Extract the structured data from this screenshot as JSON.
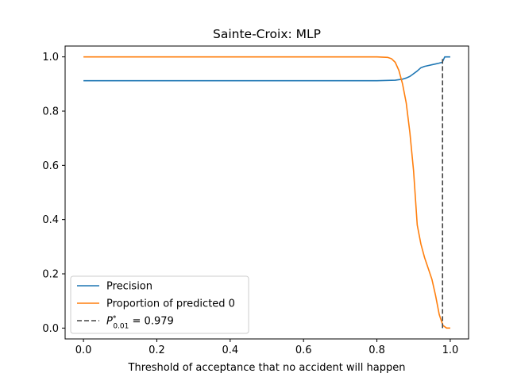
{
  "chart_data": {
    "type": "line",
    "title": "Sainte-Croix: MLP",
    "xlabel": "Threshold of acceptance that no accident will happen",
    "ylabel": "",
    "xlim": [
      -0.05,
      1.05
    ],
    "ylim": [
      -0.04,
      1.04
    ],
    "xticks": [
      0.0,
      0.2,
      0.4,
      0.6,
      0.8,
      1.0
    ],
    "xtick_labels": [
      "0.0",
      "0.2",
      "0.4",
      "0.6",
      "0.8",
      "1.0"
    ],
    "yticks": [
      0.0,
      0.2,
      0.4,
      0.6,
      0.8,
      1.0
    ],
    "ytick_labels": [
      "0.0",
      "0.2",
      "0.4",
      "0.6",
      "0.8",
      "1.0"
    ],
    "grid": false,
    "legend_position": "lower-left",
    "series": [
      {
        "name": "Precision",
        "color": "#1f77b4",
        "style": "solid",
        "x": [
          0.0,
          0.1,
          0.2,
          0.3,
          0.4,
          0.5,
          0.6,
          0.7,
          0.8,
          0.85,
          0.87,
          0.88,
          0.89,
          0.9,
          0.91,
          0.92,
          0.93,
          0.94,
          0.95,
          0.96,
          0.97,
          0.975,
          0.978,
          0.98,
          0.985,
          0.99,
          1.0
        ],
        "y": [
          0.912,
          0.912,
          0.912,
          0.912,
          0.912,
          0.912,
          0.912,
          0.912,
          0.912,
          0.914,
          0.918,
          0.922,
          0.928,
          0.938,
          0.948,
          0.96,
          0.965,
          0.968,
          0.971,
          0.974,
          0.977,
          0.979,
          0.98,
          0.985,
          1.0,
          1.0,
          1.0
        ]
      },
      {
        "name": "Proportion of predicted 0",
        "color": "#ff7f0e",
        "style": "solid",
        "x": [
          0.0,
          0.1,
          0.2,
          0.3,
          0.4,
          0.5,
          0.6,
          0.7,
          0.8,
          0.83,
          0.84,
          0.85,
          0.86,
          0.87,
          0.88,
          0.89,
          0.9,
          0.91,
          0.92,
          0.93,
          0.94,
          0.95,
          0.96,
          0.97,
          0.98,
          0.99,
          1.0
        ],
        "y": [
          1.0,
          1.0,
          1.0,
          1.0,
          1.0,
          1.0,
          1.0,
          1.0,
          1.0,
          0.998,
          0.993,
          0.98,
          0.95,
          0.9,
          0.83,
          0.72,
          0.58,
          0.38,
          0.31,
          0.26,
          0.22,
          0.18,
          0.12,
          0.05,
          0.01,
          0.0,
          0.0
        ]
      },
      {
        "name": "P*0.01 = 0.979",
        "legend_main": "P",
        "legend_sup": "*",
        "legend_sub": "0.01",
        "legend_value": " = 0.979",
        "color": "#444444",
        "style": "dashed",
        "x": [
          0.979,
          0.979
        ],
        "y": [
          0.0,
          1.0
        ]
      }
    ]
  }
}
